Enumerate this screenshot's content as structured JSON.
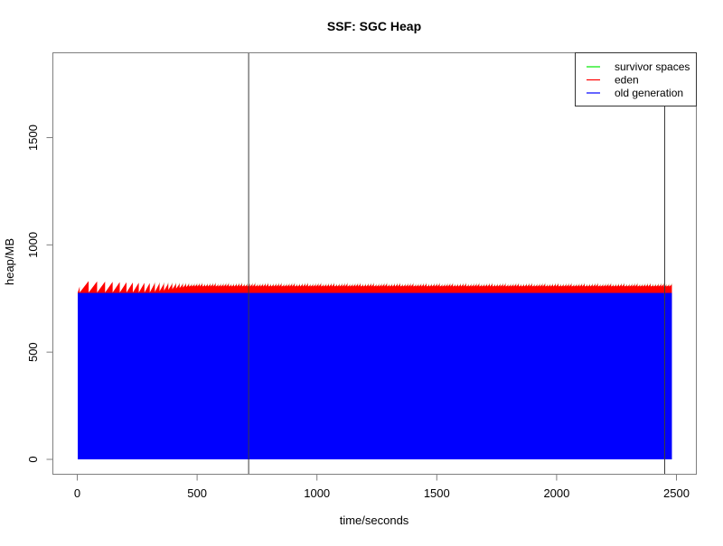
{
  "chart_data": {
    "type": "area",
    "title": "SSF: SGC Heap",
    "xlabel": "time/seconds",
    "ylabel": "heap/MB",
    "xlim": [
      0,
      2500
    ],
    "ylim": [
      0,
      1900
    ],
    "xticks": [
      0,
      500,
      1000,
      1500,
      2000,
      2500
    ],
    "yticks": [
      0,
      500,
      1000,
      1500
    ],
    "grid": false,
    "time_range_s": [
      2,
      2481
    ],
    "legend": {
      "position": "top-right",
      "entries": [
        {
          "label": "survivor spaces",
          "color": "#00e800"
        },
        {
          "label": "eden",
          "color": "#ff0000"
        },
        {
          "label": "old generation",
          "color": "#0000ff"
        }
      ]
    },
    "series": [
      {
        "name": "survivor spaces",
        "type": "sawtooth",
        "color": "#00e800",
        "note": "stacked just above eden; visible as small tips in dense region",
        "tip_above_eden_mb": 7,
        "tips_visible_after_s": 320,
        "apparent_tip_color": "#a08a40"
      },
      {
        "name": "eden",
        "type": "sawtooth",
        "color": "#ff0000",
        "valley_mb": 778,
        "peak_start_mb": 833,
        "peak_at_ramp_end_mb": 816,
        "peak_end_mb": 814,
        "first_tooth_peak_mb": 806,
        "solid_band_top_mb": 806,
        "solid_band_ramp_s": [
          310,
          470
        ],
        "period_start_s": 38,
        "period_min_s": 11,
        "period_ramp_until_s": 480
      },
      {
        "name": "old generation",
        "type": "area",
        "color": "#0000ff",
        "value_mb": 776
      }
    ],
    "vlines": {
      "color": "#3c3c3c",
      "x": [
        715,
        2451
      ]
    }
  },
  "frame_color": "#7f7f7f"
}
